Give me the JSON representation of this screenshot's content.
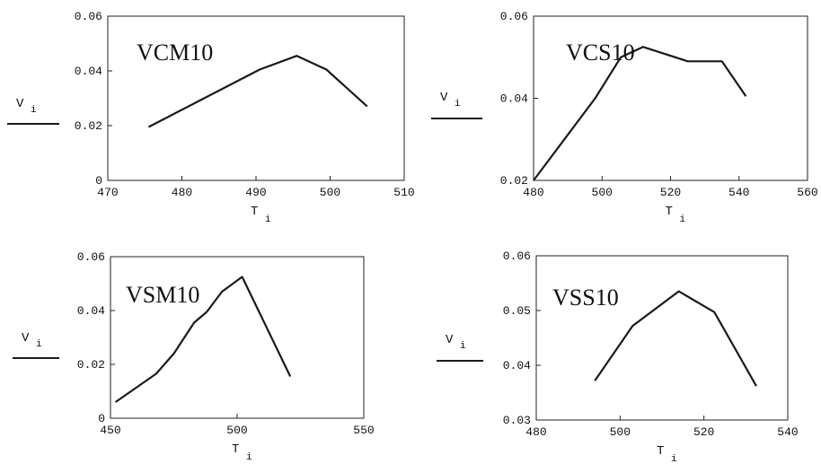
{
  "chart_data": [
    {
      "type": "line",
      "title": "VCM10",
      "xlabel": "T",
      "xlabel_sub": "i",
      "ylabel": "V",
      "ylabel_sub": "i",
      "xlim": [
        470,
        510
      ],
      "ylim": [
        0,
        0.06
      ],
      "xticks": [
        "470",
        "480",
        "490",
        "500",
        "510"
      ],
      "yticks": [
        "0",
        "0.02",
        "0.04",
        "0.06"
      ],
      "x": [
        475.5,
        490.5,
        495.5,
        499.5,
        505
      ],
      "y": [
        0.0195,
        0.0405,
        0.0455,
        0.0405,
        0.027
      ]
    },
    {
      "type": "line",
      "title": "VCS10",
      "xlabel": "T",
      "xlabel_sub": "i",
      "ylabel": "V",
      "ylabel_sub": "i",
      "xlim": [
        480,
        560
      ],
      "ylim": [
        0.02,
        0.06
      ],
      "xticks": [
        "480",
        "500",
        "520",
        "540",
        "560"
      ],
      "yticks": [
        "0.02",
        "0.04",
        "0.06"
      ],
      "x": [
        480,
        498,
        505.5,
        512,
        525,
        535,
        542
      ],
      "y": [
        0.02,
        0.04,
        0.05,
        0.0525,
        0.049,
        0.049,
        0.0405
      ]
    },
    {
      "type": "line",
      "title": "VSM10",
      "xlabel": "T",
      "xlabel_sub": "i",
      "ylabel": "V",
      "ylabel_sub": "i",
      "xlim": [
        450,
        550
      ],
      "ylim": [
        0,
        0.06
      ],
      "xticks": [
        "450",
        "500",
        "550"
      ],
      "yticks": [
        "0",
        "0.02",
        "0.04",
        "0.06"
      ],
      "x": [
        452,
        468,
        475,
        483,
        488,
        494,
        502,
        521
      ],
      "y": [
        0.006,
        0.0165,
        0.024,
        0.0355,
        0.0395,
        0.047,
        0.0525,
        0.0155
      ]
    },
    {
      "type": "line",
      "title": "VSS10",
      "xlabel": "T",
      "xlabel_sub": "i",
      "ylabel": "V",
      "ylabel_sub": "i",
      "xlim": [
        480,
        540
      ],
      "ylim": [
        0.03,
        0.06
      ],
      "xticks": [
        "480",
        "500",
        "520",
        "540"
      ],
      "yticks": [
        "0.03",
        "0.04",
        "0.05",
        "0.06"
      ],
      "x": [
        494,
        503,
        514,
        522.5,
        532.5
      ],
      "y": [
        0.0372,
        0.0472,
        0.0535,
        0.0497,
        0.0362
      ]
    }
  ]
}
